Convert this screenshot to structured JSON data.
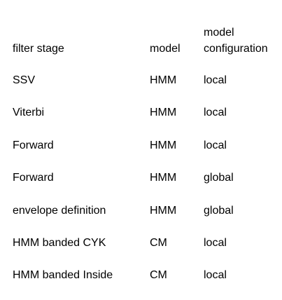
{
  "table": {
    "headers": {
      "filter_stage": "filter stage",
      "model": "model",
      "model_configuration_line1": "model",
      "model_configuration_line2": "configuration"
    },
    "rows": [
      {
        "stage": "SSV",
        "model": "HMM",
        "config": "local"
      },
      {
        "stage": "Viterbi",
        "model": "HMM",
        "config": "local"
      },
      {
        "stage": "Forward",
        "model": "HMM",
        "config": "local"
      },
      {
        "stage": "Forward",
        "model": "HMM",
        "config": "global"
      },
      {
        "stage": "envelope definition",
        "model": "HMM",
        "config": "global"
      },
      {
        "stage": "HMM banded CYK",
        "model": "CM",
        "config": "local"
      },
      {
        "stage": "HMM banded Inside",
        "model": "CM",
        "config": "local"
      }
    ]
  }
}
